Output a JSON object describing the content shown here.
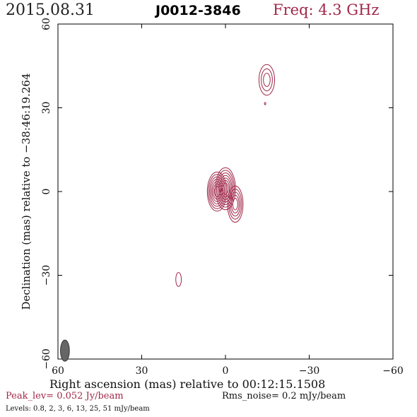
{
  "header": {
    "date": "2015.08.31",
    "source": "J0012-3846",
    "freq": "Freq: 4.3 GHz"
  },
  "footer": {
    "peak": "Peak_lev=  0.052 Jy/beam",
    "rms": "Rms_noise=  0.2 mJy/beam",
    "levels": "Levels: 0.8,    2,    3,    6,   13,   25,   51  mJy/beam"
  },
  "colors": {
    "contour": "#a0284a",
    "beam": "#666666",
    "frame": "#000000"
  },
  "chart_data": {
    "type": "contour",
    "xlabel": "Right ascension (mas) relative to 00:12:15.1508",
    "ylabel": "Declination (mas) relative to −38:46:19.264",
    "xlim": [
      60,
      -60
    ],
    "ylim": [
      -60,
      60
    ],
    "xticks": [
      60,
      30,
      0,
      -30,
      -60
    ],
    "yticks": [
      -60,
      -30,
      0,
      30,
      60
    ],
    "xtick_labels": [
      "60",
      "30",
      "0",
      "−30",
      "−60"
    ],
    "ytick_labels": [
      "−60",
      "−30",
      "0",
      "30",
      "60"
    ],
    "contour_levels_mJy": [
      0.8,
      2,
      3,
      6,
      13,
      25,
      51
    ],
    "components": [
      {
        "id": "core-a",
        "x": 3,
        "y": 0,
        "w": 3.5,
        "h": 7,
        "levels": 7
      },
      {
        "id": "core-b",
        "x": 0,
        "y": 1,
        "w": 3.6,
        "h": 7.5,
        "levels": 7
      },
      {
        "id": "core-c",
        "x": -3.5,
        "y": -4.5,
        "w": 2.8,
        "h": 6.5,
        "levels": 5
      },
      {
        "id": "north-knot",
        "x": -14.8,
        "y": 40,
        "w": 2.8,
        "h": 5.5,
        "levels": 3
      },
      {
        "id": "south-knot",
        "x": 16.8,
        "y": -31.5,
        "w": 1.0,
        "h": 2.5,
        "levels": 1
      },
      {
        "id": "speck",
        "x": -14.2,
        "y": 31.5,
        "w": 0.25,
        "h": 0.4,
        "levels": 1
      }
    ],
    "beam": {
      "x": 57.5,
      "y": -57,
      "major_mas": 3.8,
      "minor_mas": 1.6,
      "pa_deg": 0
    }
  }
}
